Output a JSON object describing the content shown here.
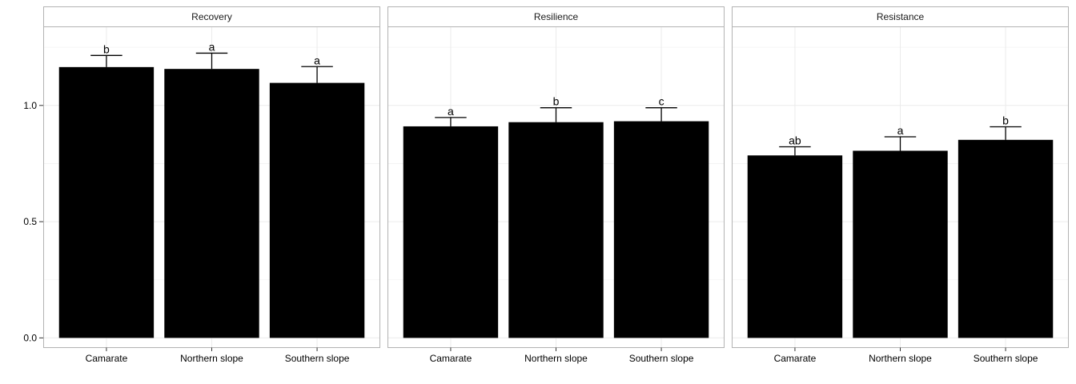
{
  "chart_data": {
    "type": "bar",
    "facet_by": "index",
    "grid": true,
    "legend": "none",
    "colors": {
      "bar": "#000000",
      "panel_border": "#b3b3b3",
      "strip_bg": "#ffffff",
      "grid": "#ebebeb"
    },
    "categories": [
      "Camarate",
      "Northern slope",
      "Southern slope"
    ],
    "ylim": [
      -0.04,
      1.34
    ],
    "y_ticks": [
      0.0,
      0.5,
      1.0
    ],
    "y_tick_labels": [
      "0.0",
      "0.5",
      "1.0"
    ],
    "panels": [
      {
        "title": "Recovery",
        "values": [
          1.165,
          1.157,
          1.097
        ],
        "error_upper": [
          1.215,
          1.225,
          1.167
        ],
        "letters": [
          "b",
          "a",
          "a"
        ]
      },
      {
        "title": "Resilience",
        "values": [
          0.91,
          0.928,
          0.932
        ],
        "error_upper": [
          0.948,
          0.99,
          0.99
        ],
        "letters": [
          "a",
          "b",
          "c"
        ]
      },
      {
        "title": "Resistance",
        "values": [
          0.785,
          0.805,
          0.852
        ],
        "error_upper": [
          0.822,
          0.865,
          0.908
        ],
        "letters": [
          "ab",
          "a",
          "b"
        ]
      }
    ]
  }
}
